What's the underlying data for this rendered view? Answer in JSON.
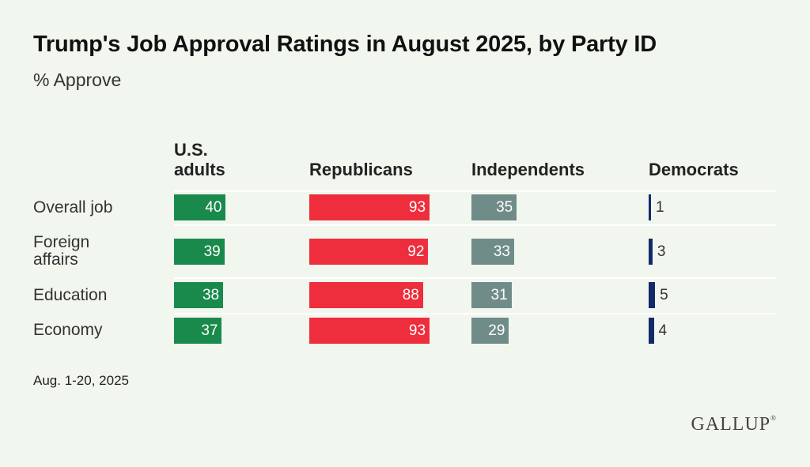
{
  "chart_data": {
    "type": "bar",
    "title": "Trump's Job Approval Ratings in August 2025, by Party ID",
    "subtitle": "% Approve",
    "categories": [
      "Overall job",
      "Foreign affairs",
      "Education",
      "Economy"
    ],
    "category_lines": [
      [
        "Overall job"
      ],
      [
        "Foreign",
        "affairs"
      ],
      [
        "Education"
      ],
      [
        "Economy"
      ]
    ],
    "series": [
      {
        "name": "U.S. adults",
        "name_lines": [
          "U.S.",
          "adults"
        ],
        "color": "#1a8a4c",
        "values": [
          40,
          39,
          38,
          37
        ]
      },
      {
        "name": "Republicans",
        "name_lines": [
          "Republicans"
        ],
        "color": "#ee2e3c",
        "values": [
          93,
          92,
          88,
          93
        ]
      },
      {
        "name": "Independents",
        "name_lines": [
          "Independents"
        ],
        "color": "#708c88",
        "values": [
          35,
          33,
          31,
          29
        ]
      },
      {
        "name": "Democrats",
        "name_lines": [
          "Democrats"
        ],
        "color": "#132a6a",
        "values": [
          1,
          3,
          5,
          4
        ]
      }
    ],
    "xlim": [
      0,
      100
    ],
    "note": "Aug. 1-20, 2025",
    "source_logo": "GALLUP"
  }
}
